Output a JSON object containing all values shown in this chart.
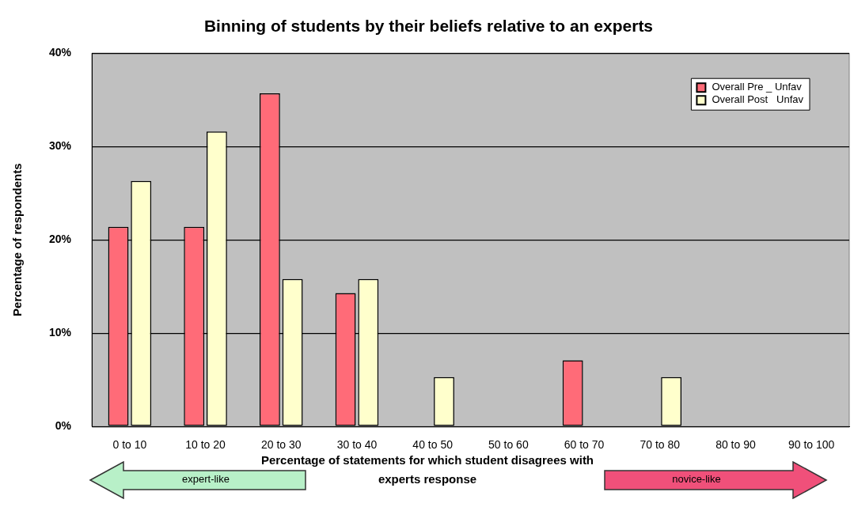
{
  "chart_data": {
    "type": "bar",
    "title": "Binning of students by their beliefs relative to an experts",
    "xlabel": "Percentage of statements for which student disagrees with experts response",
    "ylabel": "Percentage of respondents",
    "categories": [
      "0 to 10",
      "10 to 20",
      "20 to 30",
      "30 to 40",
      "40 to 50",
      "50 to 60",
      "60 to 70",
      "70 to 80",
      "80 to 90",
      "90 to 100"
    ],
    "series": [
      {
        "name": "Overall Pre _ Unfav",
        "color": "#ff6b78",
        "values": [
          21.4,
          21.4,
          35.7,
          14.3,
          0,
          0,
          7.1,
          0,
          0,
          0
        ]
      },
      {
        "name": "Overall Post   Unfav",
        "color": "#ffffcc",
        "values": [
          26.3,
          31.6,
          15.8,
          15.8,
          5.3,
          0,
          0,
          5.3,
          0,
          0
        ]
      }
    ],
    "ylim": [
      0,
      40
    ],
    "yticks": [
      {
        "value": 0,
        "label": "0%"
      },
      {
        "value": 10,
        "label": "10%"
      },
      {
        "value": 20,
        "label": "20%"
      },
      {
        "value": 30,
        "label": "30%"
      },
      {
        "value": 40,
        "label": "40%"
      }
    ],
    "grid": "y",
    "legend": "top right",
    "annotations": [
      "expert-like",
      "novice-like"
    ]
  }
}
